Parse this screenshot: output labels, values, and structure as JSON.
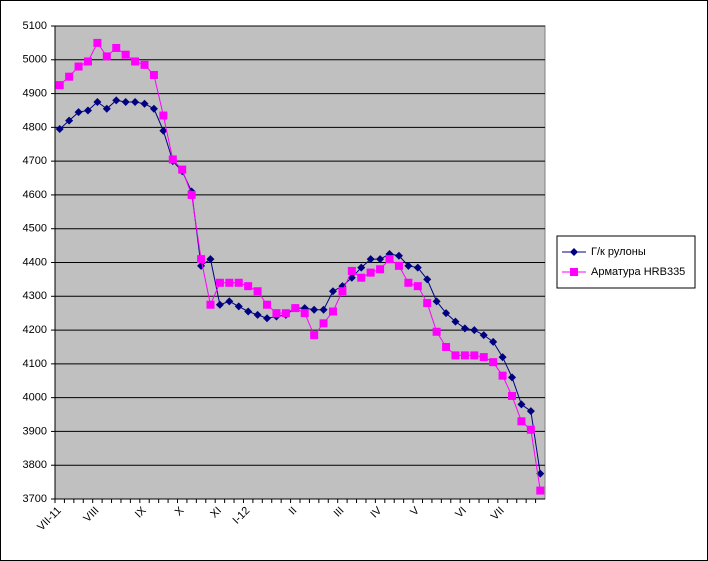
{
  "chart_data": {
    "type": "line",
    "categories": [
      "VII-11",
      null,
      null,
      null,
      "VIII",
      null,
      null,
      null,
      null,
      "IX",
      null,
      null,
      null,
      "X",
      null,
      null,
      null,
      "XI",
      null,
      null,
      "I-12",
      null,
      null,
      null,
      null,
      "II",
      null,
      null,
      null,
      null,
      "III",
      null,
      null,
      null,
      "IV",
      null,
      null,
      null,
      "V",
      null,
      null,
      null,
      null,
      "VI",
      null,
      null,
      null,
      "VII",
      null,
      null,
      null,
      null
    ],
    "series": [
      {
        "name": "Г/к рулоны",
        "color": "#000080",
        "marker": "diamond",
        "values": [
          4795,
          4820,
          4845,
          4850,
          4875,
          4855,
          4880,
          4875,
          4875,
          4870,
          4855,
          4790,
          4700,
          4670,
          4610,
          4390,
          4410,
          4275,
          4285,
          4270,
          4255,
          4245,
          4235,
          4240,
          4245,
          4265,
          4265,
          4260,
          4260,
          4315,
          4330,
          4355,
          4385,
          4410,
          4410,
          4425,
          4420,
          4390,
          4385,
          4350,
          4285,
          4250,
          4225,
          4205,
          4200,
          4185,
          4165,
          4120,
          4060,
          3980,
          3960,
          3775
        ]
      },
      {
        "name": "Арматура HRB335",
        "color": "#ff00ff",
        "marker": "square",
        "values": [
          4925,
          4950,
          4980,
          4995,
          5050,
          5010,
          5035,
          5015,
          4995,
          4985,
          4955,
          4835,
          4705,
          4675,
          4600,
          4410,
          4275,
          4340,
          4340,
          4340,
          4330,
          4315,
          4275,
          4250,
          4250,
          4265,
          4250,
          4185,
          4220,
          4255,
          4315,
          4375,
          4355,
          4370,
          4380,
          4410,
          4390,
          4340,
          4330,
          4280,
          4195,
          4150,
          4125,
          4125,
          4125,
          4120,
          4105,
          4065,
          4005,
          3930,
          3905,
          3725
        ]
      }
    ],
    "ylim": [
      3700,
      5100
    ],
    "yticks": [
      3700,
      3800,
      3900,
      4000,
      4100,
      4200,
      4300,
      4400,
      4500,
      4600,
      4700,
      4800,
      4900,
      5000,
      5100
    ],
    "grid": true,
    "legend": "right",
    "background": "#c0c0c0"
  }
}
